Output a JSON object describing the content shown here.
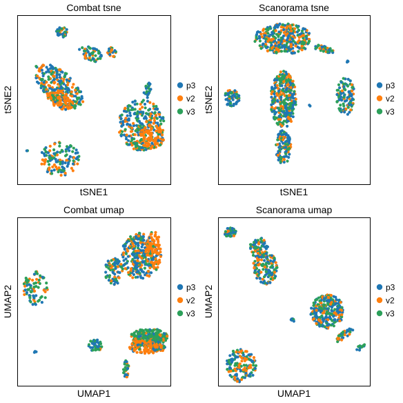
{
  "colors": {
    "p3": "#1f77b4",
    "v2": "#ff7f0e",
    "v3": "#2ca05a"
  },
  "legend": [
    "p3",
    "v2",
    "v3"
  ],
  "chart_data": [
    {
      "type": "scatter",
      "title": "Combat tsne",
      "xlabel": "tSNE1",
      "ylabel": "tSNE2",
      "xlim": [
        0,
        1
      ],
      "ylim": [
        0,
        1
      ],
      "grid": false,
      "legend_position": "right",
      "series": [
        {
          "name": "p3"
        },
        {
          "name": "v2"
        },
        {
          "name": "v3"
        }
      ],
      "clusters": [
        {
          "cx": 0.29,
          "cy": 0.9,
          "rx": 0.04,
          "ry": 0.03,
          "n": 40,
          "mix": [
            0.55,
            0.15,
            0.3
          ]
        },
        {
          "cx": 0.27,
          "cy": 0.58,
          "rx": 0.19,
          "ry": 0.09,
          "rot": -0.62,
          "n": 260,
          "mix": [
            0.4,
            0.3,
            0.3
          ]
        },
        {
          "cx": 0.28,
          "cy": 0.5,
          "rx": 0.09,
          "ry": 0.05,
          "rot": -0.45,
          "n": 110,
          "mix": [
            0.1,
            0.8,
            0.1
          ]
        },
        {
          "cx": 0.48,
          "cy": 0.77,
          "rx": 0.08,
          "ry": 0.04,
          "rot": -0.3,
          "n": 60,
          "mix": [
            0.45,
            0.2,
            0.35
          ]
        },
        {
          "cx": 0.62,
          "cy": 0.78,
          "rx": 0.03,
          "ry": 0.03,
          "n": 25,
          "mix": [
            0.3,
            0.45,
            0.25
          ]
        },
        {
          "cx": 0.85,
          "cy": 0.56,
          "rx": 0.025,
          "ry": 0.05,
          "n": 25,
          "mix": [
            0.45,
            0.15,
            0.4
          ]
        },
        {
          "cx": 0.81,
          "cy": 0.35,
          "rx": 0.15,
          "ry": 0.15,
          "n": 300,
          "mix": [
            0.4,
            0.25,
            0.35
          ]
        },
        {
          "cx": 0.88,
          "cy": 0.28,
          "rx": 0.08,
          "ry": 0.07,
          "n": 90,
          "mix": [
            0.05,
            0.9,
            0.05
          ]
        },
        {
          "cx": 0.28,
          "cy": 0.15,
          "rx": 0.13,
          "ry": 0.1,
          "n": 120,
          "mix": [
            0.35,
            0.3,
            0.35
          ]
        },
        {
          "cx": 0.07,
          "cy": 0.2,
          "rx": 0.008,
          "ry": 0.008,
          "n": 2,
          "mix": [
            0.5,
            0,
            0.5
          ]
        }
      ]
    },
    {
      "type": "scatter",
      "title": "Scanorama tsne",
      "xlabel": "tSNE1",
      "ylabel": "tSNE2",
      "xlim": [
        0,
        1
      ],
      "ylim": [
        0,
        1
      ],
      "grid": false,
      "legend_position": "right",
      "series": [
        {
          "name": "p3"
        },
        {
          "name": "v2"
        },
        {
          "name": "v3"
        }
      ],
      "clusters": [
        {
          "cx": 0.43,
          "cy": 0.86,
          "rx": 0.19,
          "ry": 0.09,
          "n": 320,
          "mix": [
            0.4,
            0.35,
            0.25
          ]
        },
        {
          "cx": 0.7,
          "cy": 0.8,
          "rx": 0.07,
          "ry": 0.02,
          "rot": -0.2,
          "n": 40,
          "mix": [
            0.45,
            0.25,
            0.3
          ]
        },
        {
          "cx": 0.09,
          "cy": 0.51,
          "rx": 0.05,
          "ry": 0.05,
          "n": 60,
          "mix": [
            0.5,
            0.15,
            0.35
          ]
        },
        {
          "cx": 0.43,
          "cy": 0.5,
          "rx": 0.085,
          "ry": 0.17,
          "n": 320,
          "mix": [
            0.4,
            0.3,
            0.3
          ]
        },
        {
          "cx": 0.43,
          "cy": 0.22,
          "rx": 0.05,
          "ry": 0.1,
          "n": 110,
          "mix": [
            0.45,
            0.25,
            0.3
          ]
        },
        {
          "cx": 0.84,
          "cy": 0.52,
          "rx": 0.06,
          "ry": 0.11,
          "n": 110,
          "mix": [
            0.4,
            0.25,
            0.35
          ]
        },
        {
          "cx": 0.85,
          "cy": 0.72,
          "rx": 0.01,
          "ry": 0.01,
          "n": 3,
          "mix": [
            1,
            0,
            0
          ]
        },
        {
          "cx": 0.6,
          "cy": 0.46,
          "rx": 0.01,
          "ry": 0.01,
          "n": 2,
          "mix": [
            1,
            0,
            0
          ]
        }
      ]
    },
    {
      "type": "scatter",
      "title": "Combat umap",
      "xlabel": "UMAP1",
      "ylabel": "UMAP2",
      "xlim": [
        0,
        1
      ],
      "ylim": [
        0,
        1
      ],
      "grid": false,
      "legend_position": "right",
      "series": [
        {
          "name": "p3"
        },
        {
          "name": "v2"
        },
        {
          "name": "v3"
        }
      ],
      "clusters": [
        {
          "cx": 0.8,
          "cy": 0.77,
          "rx": 0.12,
          "ry": 0.14,
          "n": 300,
          "mix": [
            0.45,
            0.3,
            0.25
          ]
        },
        {
          "cx": 0.89,
          "cy": 0.8,
          "rx": 0.05,
          "ry": 0.12,
          "n": 80,
          "mix": [
            0.05,
            0.9,
            0.05
          ]
        },
        {
          "cx": 0.63,
          "cy": 0.68,
          "rx": 0.06,
          "ry": 0.08,
          "n": 80,
          "mix": [
            0.4,
            0.25,
            0.35
          ]
        },
        {
          "cx": 0.12,
          "cy": 0.58,
          "rx": 0.08,
          "ry": 0.1,
          "n": 80,
          "mix": [
            0.35,
            0.25,
            0.4
          ]
        },
        {
          "cx": 0.51,
          "cy": 0.24,
          "rx": 0.045,
          "ry": 0.035,
          "n": 45,
          "mix": [
            0.55,
            0.1,
            0.35
          ]
        },
        {
          "cx": 0.86,
          "cy": 0.29,
          "rx": 0.12,
          "ry": 0.05,
          "n": 220,
          "mix": [
            0.15,
            0.1,
            0.75
          ]
        },
        {
          "cx": 0.85,
          "cy": 0.23,
          "rx": 0.12,
          "ry": 0.04,
          "n": 160,
          "mix": [
            0.2,
            0.7,
            0.1
          ]
        },
        {
          "cx": 0.71,
          "cy": 0.1,
          "rx": 0.02,
          "ry": 0.05,
          "n": 30,
          "mix": [
            0.3,
            0.35,
            0.35
          ]
        },
        {
          "cx": 0.12,
          "cy": 0.2,
          "rx": 0.008,
          "ry": 0.008,
          "n": 3,
          "mix": [
            1,
            0,
            0
          ]
        }
      ]
    },
    {
      "type": "scatter",
      "title": "Scanorama umap",
      "xlabel": "UMAP1",
      "ylabel": "UMAP2",
      "xlim": [
        0,
        1
      ],
      "ylim": [
        0,
        1
      ],
      "grid": false,
      "legend_position": "right",
      "series": [
        {
          "name": "p3"
        },
        {
          "name": "v2"
        },
        {
          "name": "v3"
        }
      ],
      "clusters": [
        {
          "cx": 0.08,
          "cy": 0.91,
          "rx": 0.04,
          "ry": 0.03,
          "n": 40,
          "mix": [
            0.45,
            0.15,
            0.4
          ]
        },
        {
          "cx": 0.27,
          "cy": 0.82,
          "rx": 0.06,
          "ry": 0.06,
          "n": 80,
          "mix": [
            0.45,
            0.2,
            0.35
          ]
        },
        {
          "cx": 0.31,
          "cy": 0.7,
          "rx": 0.08,
          "ry": 0.1,
          "n": 140,
          "mix": [
            0.45,
            0.25,
            0.3
          ]
        },
        {
          "cx": 0.72,
          "cy": 0.44,
          "rx": 0.11,
          "ry": 0.1,
          "n": 280,
          "mix": [
            0.5,
            0.25,
            0.25
          ]
        },
        {
          "cx": 0.83,
          "cy": 0.3,
          "rx": 0.07,
          "ry": 0.02,
          "rot": 0.6,
          "n": 40,
          "mix": [
            0.45,
            0.25,
            0.3
          ]
        },
        {
          "cx": 0.94,
          "cy": 0.23,
          "rx": 0.03,
          "ry": 0.015,
          "rot": 0.6,
          "n": 15,
          "mix": [
            0.4,
            0.3,
            0.3
          ]
        },
        {
          "cx": 0.15,
          "cy": 0.12,
          "rx": 0.1,
          "ry": 0.1,
          "n": 140,
          "mix": [
            0.35,
            0.3,
            0.35
          ]
        },
        {
          "cx": 0.49,
          "cy": 0.39,
          "rx": 0.012,
          "ry": 0.012,
          "n": 6,
          "mix": [
            0.5,
            0,
            0.5
          ]
        }
      ]
    }
  ]
}
